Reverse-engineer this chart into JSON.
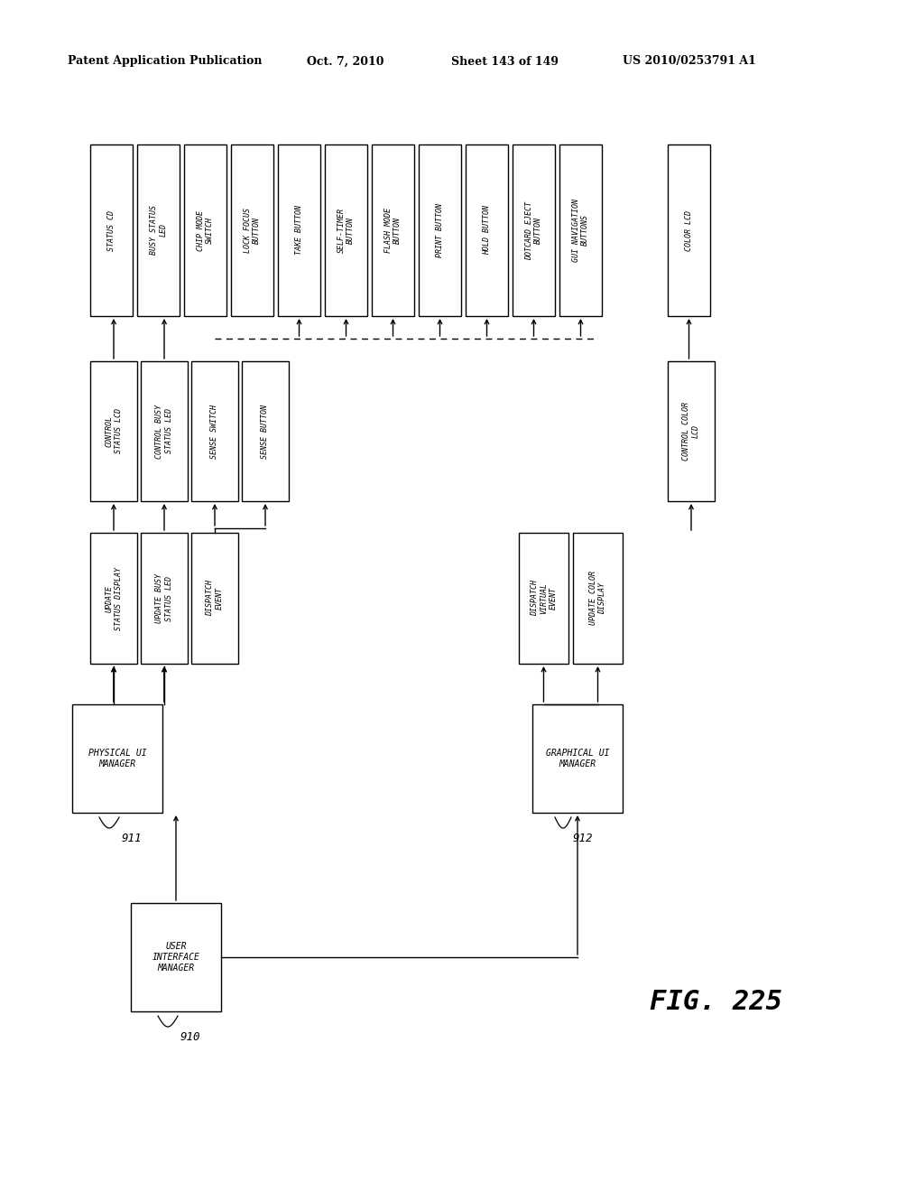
{
  "bg_color": "#ffffff",
  "header_left": "Patent Application Publication",
  "header_mid": "Oct. 7, 2010",
  "header_right_sheet": "Sheet 143 of 149",
  "header_right_patent": "US 2010/0253791 A1",
  "fig_label": "FIG. 225"
}
